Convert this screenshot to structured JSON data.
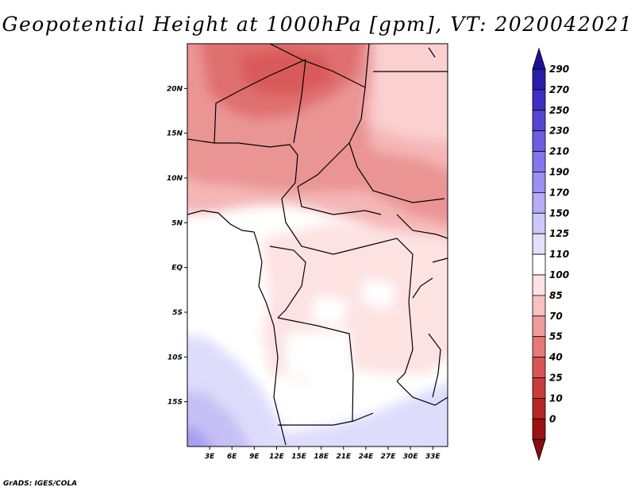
{
  "title": "Geopotential Height at 1000hPa [gpm], VT: 2020042021",
  "credit": "GrADS: IGES/COLA",
  "map": {
    "lon_range": [
      0,
      35
    ],
    "lat_range": [
      -20,
      25
    ],
    "lat_ticks": [
      {
        "lat": 20,
        "label": "20N"
      },
      {
        "lat": 15,
        "label": "15N"
      },
      {
        "lat": 10,
        "label": "10N"
      },
      {
        "lat": 5,
        "label": "5N"
      },
      {
        "lat": 0,
        "label": "EQ"
      },
      {
        "lat": -5,
        "label": "5S"
      },
      {
        "lat": -10,
        "label": "10S"
      },
      {
        "lat": -15,
        "label": "15S"
      }
    ],
    "lon_ticks": [
      {
        "lon": 3,
        "label": "3E"
      },
      {
        "lon": 6,
        "label": "6E"
      },
      {
        "lon": 9,
        "label": "9E"
      },
      {
        "lon": 12,
        "label": "12E"
      },
      {
        "lon": 15,
        "label": "15E"
      },
      {
        "lon": 18,
        "label": "18E"
      },
      {
        "lon": 21,
        "label": "21E"
      },
      {
        "lon": 24,
        "label": "24E"
      },
      {
        "lon": 27,
        "label": "27E"
      },
      {
        "lon": 30,
        "label": "30E"
      },
      {
        "lon": 33,
        "label": "33E"
      }
    ]
  },
  "colorbar": {
    "labels": [
      "290",
      "270",
      "250",
      "230",
      "210",
      "190",
      "170",
      "150",
      "125",
      "110",
      "100",
      "85",
      "70",
      "55",
      "40",
      "25",
      "10",
      "0"
    ],
    "colors": [
      "#2a1da8",
      "#3e2fc0",
      "#5546d2",
      "#6c5ee0",
      "#8476ea",
      "#9b90f0",
      "#b4acf4",
      "#ccc8f8",
      "#e2e0fb",
      "#ffffff",
      "#fde2e2",
      "#f8c0c0",
      "#f09c9c",
      "#e57878",
      "#d85656",
      "#c93c3c",
      "#b52626",
      "#9c1212"
    ],
    "top_color": "#1e1296",
    "bottom_color": "#8a0c0c"
  }
}
